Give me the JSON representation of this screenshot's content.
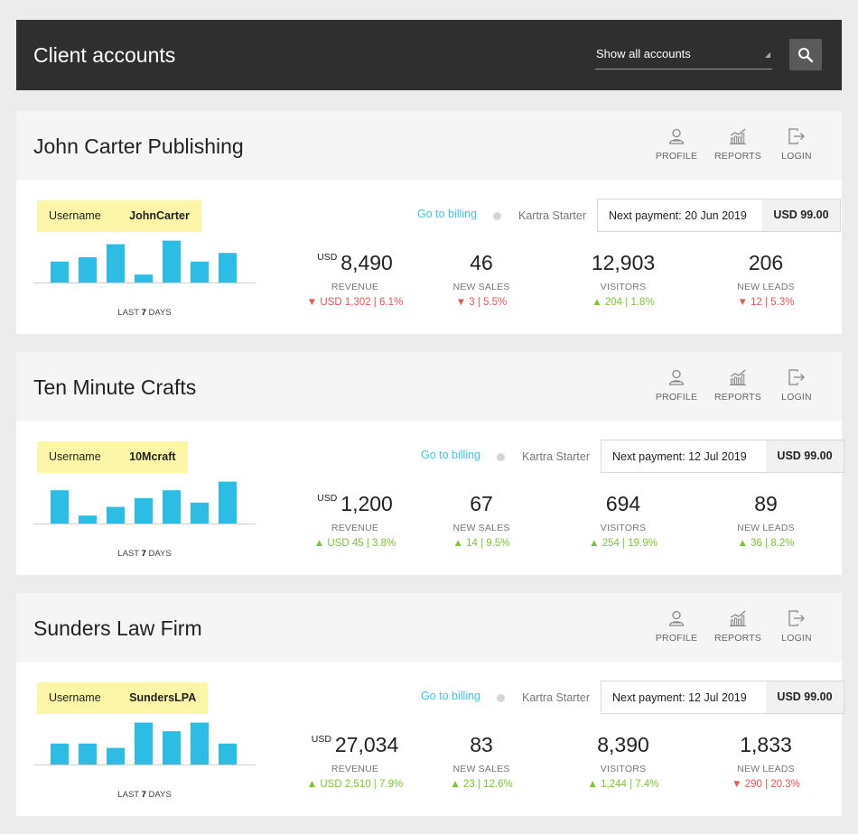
{
  "header": {
    "title": "Client accounts",
    "filter_label": "Show all accounts",
    "search_icon": "search-icon"
  },
  "colors": {
    "accent": "#3ec6e6",
    "bar": "#2bbde3",
    "chip": "#fbf6a8",
    "up": "#7cc437",
    "down": "#e85656",
    "header_bg": "#2f2f2f"
  },
  "accounts": [
    {
      "name": "John Carter Publishing",
      "actions": [
        {
          "label": "PROFILE",
          "icon": "profile-icon"
        },
        {
          "label": "REPORTS",
          "icon": "reports-icon"
        },
        {
          "label": "LOGIN",
          "icon": "login-icon"
        }
      ],
      "username_label": "Username",
      "username": "JohnCarter",
      "chart_values": [
        29,
        35,
        53,
        11,
        58,
        29,
        41
      ],
      "chart_caption_pre": "LAST",
      "chart_caption_num": "7",
      "chart_caption_post": "DAYS",
      "billing_link": "Go to billing",
      "plan": "Kartra Starter",
      "payment_label": "Next payment:  20 Jun 2019",
      "payment_amount": "USD 99.00",
      "metrics": [
        {
          "currency": "USD",
          "value": "8,490",
          "label": "REVENUE",
          "direction": "down",
          "change": "USD 1,302 | 6.1%"
        },
        {
          "currency": "",
          "value": "46",
          "label": "NEW SALES",
          "direction": "down",
          "change": "3 | 5.5%"
        },
        {
          "currency": "",
          "value": "12,903",
          "label": "VISITORS",
          "direction": "up",
          "change": "204 | 1.8%"
        },
        {
          "currency": "",
          "value": "206",
          "label": "NEW LEADS",
          "direction": "down",
          "change": "12 | 5.3%"
        }
      ]
    },
    {
      "name": "Ten Minute Crafts",
      "actions": [
        {
          "label": "PROFILE",
          "icon": "profile-icon"
        },
        {
          "label": "REPORTS",
          "icon": "reports-icon"
        },
        {
          "label": "LOGIN",
          "icon": "login-icon"
        }
      ],
      "username_label": "Username",
      "username": "10Mcraft",
      "chart_values": [
        46,
        11,
        23,
        35,
        46,
        29,
        58
      ],
      "chart_caption_pre": "LAST",
      "chart_caption_num": "7",
      "chart_caption_post": "DAYS",
      "billing_link": "Go to billing",
      "plan": "Kartra Starter",
      "payment_label": "Next payment:  12 Jul 2019",
      "payment_amount": "USD 99.00",
      "metrics": [
        {
          "currency": "USD",
          "value": "1,200",
          "label": "REVENUE",
          "direction": "up",
          "change": "USD 45 | 3.8%"
        },
        {
          "currency": "",
          "value": "67",
          "label": "NEW SALES",
          "direction": "up",
          "change": "14 | 9.5%"
        },
        {
          "currency": "",
          "value": "694",
          "label": "VISITORS",
          "direction": "up",
          "change": "254 | 19.9%"
        },
        {
          "currency": "",
          "value": "89",
          "label": "NEW LEADS",
          "direction": "up",
          "change": "36 | 8.2%"
        }
      ]
    },
    {
      "name": "Sunders Law Firm",
      "actions": [
        {
          "label": "PROFILE",
          "icon": "profile-icon"
        },
        {
          "label": "REPORTS",
          "icon": "reports-icon"
        },
        {
          "label": "LOGIN",
          "icon": "login-icon"
        }
      ],
      "username_label": "Username",
      "username": "SundersLPA",
      "chart_values": [
        29,
        29,
        23,
        58,
        46,
        58,
        29
      ],
      "chart_caption_pre": "LAST",
      "chart_caption_num": "7",
      "chart_caption_post": "DAYS",
      "billing_link": "Go to billing",
      "plan": "Kartra Starter",
      "payment_label": "Next payment:  12 Jul 2019",
      "payment_amount": "USD 99.00",
      "metrics": [
        {
          "currency": "USD",
          "value": "27,034",
          "label": "REVENUE",
          "direction": "up",
          "change": "USD 2,510 | 7.9%"
        },
        {
          "currency": "",
          "value": "83",
          "label": "NEW SALES",
          "direction": "up",
          "change": "23 | 12.6%"
        },
        {
          "currency": "",
          "value": "8,390",
          "label": "VISITORS",
          "direction": "up",
          "change": "1,244 | 7.4%"
        },
        {
          "currency": "",
          "value": "1,833",
          "label": "NEW LEADS",
          "direction": "down",
          "change": "290 | 20.3%"
        }
      ]
    }
  ]
}
